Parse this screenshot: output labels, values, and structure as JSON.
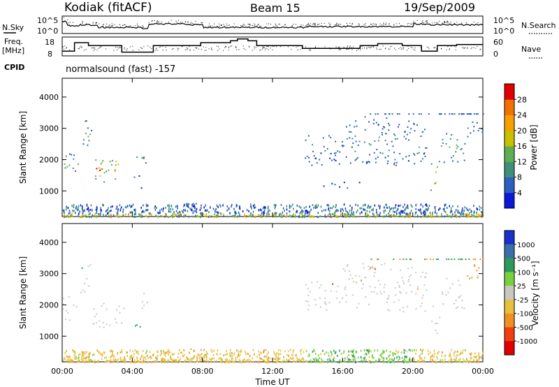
{
  "header": {
    "station": "Kodiak (fitACF)",
    "beam": "Beam 15",
    "date": "19/Sep/2009"
  },
  "noise_panel": {
    "left_label": "N.Sky",
    "right_label": "N.Search",
    "left_ticks": [
      "10^5",
      "10^0"
    ],
    "right_ticks": [
      "10^5",
      "10^0"
    ]
  },
  "freq_panel": {
    "left_label_1": "Freq.",
    "left_label_2": "[MHz]",
    "left_ticks": [
      "18",
      "8"
    ],
    "right_label": "Nave",
    "right_ticks": [
      "60",
      "0"
    ]
  },
  "cpid": {
    "label": "CPID",
    "value": "normalsound (fast) -157"
  },
  "x_axis": {
    "label": "Time UT",
    "ticks": [
      "00:00",
      "04:00",
      "08:00",
      "12:00",
      "16:00",
      "20:00",
      "00:00"
    ]
  },
  "power_panel": {
    "ylabel": "Slant Range [km]",
    "yticks": [
      "1000",
      "2000",
      "3000",
      "4000"
    ],
    "cbar_label": "Power [dB]",
    "cbar_ticks": [
      "4",
      "8",
      "12",
      "16",
      "20",
      "24",
      "28"
    ],
    "cbar_colors": [
      "#0b18d8",
      "#2c5fc0",
      "#3f8f7a",
      "#5faf52",
      "#c8c000",
      "#f5a000",
      "#f07000",
      "#e00000"
    ]
  },
  "velocity_panel": {
    "ylabel": "Slant Range [km]",
    "yticks": [
      "1000",
      "2000",
      "3000",
      "4000"
    ],
    "cbar_label": "Velocity [m s⁻¹]",
    "cbar_ticks": [
      "1000",
      "500",
      "100",
      "25",
      "-25",
      "-100",
      "-500",
      "-1000"
    ],
    "cbar_colors": [
      "#1a30c8",
      "#3c6fa8",
      "#2e9a5a",
      "#7ad040",
      "#c8c8c0",
      "#e8c040",
      "#f09020",
      "#f04010",
      "#e00000"
    ]
  },
  "chart_data": {
    "type": "heatmap",
    "x_range_hours": [
      0,
      24
    ],
    "y_range_km": [
      180,
      4600
    ],
    "power_regions": [
      {
        "t0": 0.0,
        "t1": 0.9,
        "r0": 1500,
        "r1": 2300,
        "level": 12
      },
      {
        "t0": 1.0,
        "t1": 1.7,
        "r0": 2400,
        "r1": 3300,
        "level": 14
      },
      {
        "t0": 1.7,
        "t1": 3.6,
        "r0": 1300,
        "r1": 2100,
        "level": 24
      },
      {
        "t0": 4.2,
        "t1": 4.9,
        "r0": 1900,
        "r1": 2400,
        "level": 10
      },
      {
        "t0": 4.0,
        "t1": 4.5,
        "r0": 1100,
        "r1": 1500,
        "level": 6
      },
      {
        "t0": 6.8,
        "t1": 8.0,
        "r0": 300,
        "r1": 650,
        "level": 10
      },
      {
        "t0": 13.8,
        "t1": 16.0,
        "r0": 1800,
        "r1": 2800,
        "level": 8
      },
      {
        "t0": 16.0,
        "t1": 18.5,
        "r0": 1900,
        "r1": 3400,
        "level": 10
      },
      {
        "t0": 18.5,
        "t1": 20.8,
        "r0": 1800,
        "r1": 3300,
        "level": 10
      },
      {
        "t0": 21.0,
        "t1": 21.5,
        "r0": 1000,
        "r1": 2000,
        "level": 22
      },
      {
        "t0": 21.6,
        "t1": 23.0,
        "r0": 1900,
        "r1": 2900,
        "level": 12
      },
      {
        "t0": 23.0,
        "t1": 24.0,
        "r0": 2700,
        "r1": 3300,
        "level": 8
      },
      {
        "t0": 14.7,
        "t1": 17.0,
        "r0": 1100,
        "r1": 1300,
        "level": 5
      }
    ],
    "ground_scatter_band_km": [
      200,
      600
    ],
    "velocity_regions": [
      {
        "t0": 0.0,
        "t1": 0.9,
        "r0": 1500,
        "r1": 2300,
        "v": 0
      },
      {
        "t0": 1.0,
        "t1": 1.7,
        "r0": 2400,
        "r1": 3300,
        "v": 0
      },
      {
        "t0": 1.7,
        "t1": 3.6,
        "r0": 1300,
        "r1": 2100,
        "v": 0
      },
      {
        "t0": 4.2,
        "t1": 4.9,
        "r0": 1900,
        "r1": 2400,
        "v": 0
      },
      {
        "t0": 4.0,
        "t1": 4.5,
        "r0": 1100,
        "r1": 1500,
        "v": 150
      },
      {
        "t0": 6.8,
        "t1": 8.0,
        "r0": 400,
        "r1": 650,
        "v": -300
      },
      {
        "t0": 13.8,
        "t1": 16.0,
        "r0": 1800,
        "r1": 2800,
        "v": 0
      },
      {
        "t0": 16.0,
        "t1": 18.5,
        "r0": 1900,
        "r1": 3400,
        "v": 0
      },
      {
        "t0": 18.5,
        "t1": 20.8,
        "r0": 1800,
        "r1": 3300,
        "v": 0
      },
      {
        "t0": 21.0,
        "t1": 21.5,
        "r0": 1000,
        "r1": 2000,
        "v": 0
      },
      {
        "t0": 21.6,
        "t1": 23.0,
        "r0": 1900,
        "r1": 2900,
        "v": 0
      },
      {
        "t0": 23.0,
        "t1": 24.0,
        "r0": 2700,
        "r1": 3300,
        "v": -150
      }
    ],
    "noise_sky_approx": [
      {
        "t": 0.0,
        "v": 0.7
      },
      {
        "t": 0.3,
        "v": 0.45
      },
      {
        "t": 1.0,
        "v": 0.5
      },
      {
        "t": 1.6,
        "v": 0.45
      },
      {
        "t": 2.0,
        "v": 0.35
      },
      {
        "t": 4.5,
        "v": 0.3
      },
      {
        "t": 4.9,
        "v": 0.55
      },
      {
        "t": 7.0,
        "v": 0.5
      },
      {
        "t": 8.0,
        "v": 0.35
      },
      {
        "t": 12.0,
        "v": 0.35
      },
      {
        "t": 14.0,
        "v": 0.4
      },
      {
        "t": 16.0,
        "v": 0.4
      },
      {
        "t": 20.0,
        "v": 0.55
      },
      {
        "t": 21.0,
        "v": 0.5
      },
      {
        "t": 24.0,
        "v": 0.4
      }
    ],
    "frequency_steps_mhz": [
      {
        "t": 0.0,
        "f": 10.5
      },
      {
        "t": 0.7,
        "f": 15.0
      },
      {
        "t": 1.5,
        "f": 13.5
      },
      {
        "t": 3.4,
        "f": 10.0
      },
      {
        "t": 5.2,
        "f": 13.5
      },
      {
        "t": 7.3,
        "f": 13.5
      },
      {
        "t": 7.9,
        "f": 15.0
      },
      {
        "t": 9.6,
        "f": 16.0
      },
      {
        "t": 10.0,
        "f": 17.0
      },
      {
        "t": 10.6,
        "f": 16.0
      },
      {
        "t": 11.1,
        "f": 13.5
      },
      {
        "t": 13.7,
        "f": 12.0
      },
      {
        "t": 16.0,
        "f": 12.0
      },
      {
        "t": 17.0,
        "f": 13.5
      },
      {
        "t": 18.0,
        "f": 14.5
      },
      {
        "t": 19.4,
        "f": 13.5
      },
      {
        "t": 20.5,
        "f": 10.5
      },
      {
        "t": 21.4,
        "f": 13.5
      },
      {
        "t": 22.5,
        "f": 14.0
      },
      {
        "t": 24.0,
        "f": 14.0
      }
    ]
  }
}
